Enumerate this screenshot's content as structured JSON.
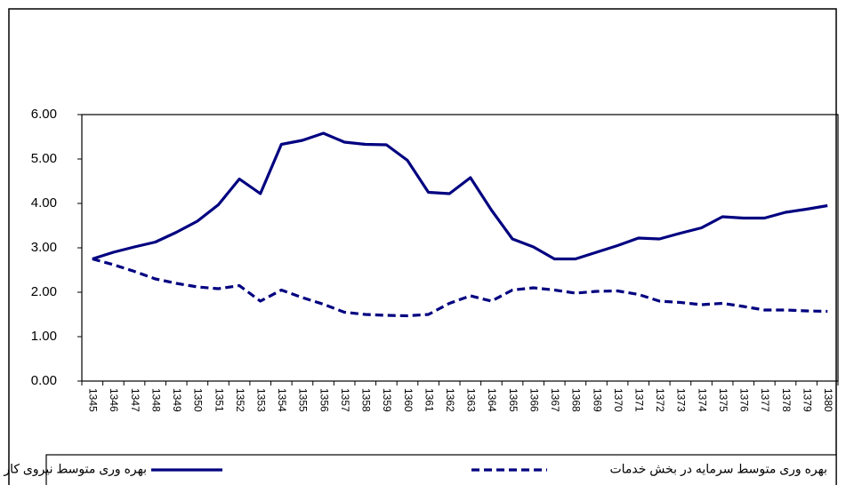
{
  "chart_data": {
    "type": "line",
    "categories": [
      "1345",
      "1346",
      "1347",
      "1348",
      "1349",
      "1350",
      "1351",
      "1352",
      "1353",
      "1354",
      "1355",
      "1356",
      "1357",
      "1358",
      "1359",
      "1360",
      "1361",
      "1362",
      "1363",
      "1364",
      "1365",
      "1366",
      "1367",
      "1368",
      "1369",
      "1370",
      "1371",
      "1372",
      "1373",
      "1374",
      "1375",
      "1376",
      "1377",
      "1378",
      "1379",
      "1380"
    ],
    "series": [
      {
        "name": "بهره وری متوسط نیروی کار در بخش خدمات",
        "color": "#000080",
        "dash": false,
        "values": [
          2.75,
          2.9,
          3.02,
          3.13,
          3.35,
          3.6,
          3.97,
          4.55,
          4.22,
          5.33,
          5.42,
          5.58,
          5.38,
          5.33,
          5.32,
          4.97,
          4.25,
          4.22,
          4.58,
          3.85,
          3.2,
          3.02,
          2.75,
          2.75,
          2.9,
          3.05,
          3.22,
          3.2,
          3.33,
          3.45,
          3.7,
          3.67,
          3.67,
          3.8,
          3.87,
          3.95
        ]
      },
      {
        "name": "بهره وری متوسط سرمایه در بخش خدمات",
        "color": "#000080",
        "dash": true,
        "values": [
          2.75,
          2.62,
          2.47,
          2.3,
          2.2,
          2.12,
          2.08,
          2.15,
          1.8,
          2.05,
          1.88,
          1.73,
          1.55,
          1.5,
          1.48,
          1.47,
          1.5,
          1.75,
          1.92,
          1.8,
          2.05,
          2.1,
          2.05,
          1.98,
          2.02,
          2.03,
          1.95,
          1.8,
          1.77,
          1.72,
          1.75,
          1.68,
          1.6,
          1.6,
          1.58,
          1.57
        ]
      }
    ],
    "ylim": [
      0,
      6
    ],
    "yticks": [
      {
        "value": 0,
        "label": "0.00"
      },
      {
        "value": 1,
        "label": "1.00"
      },
      {
        "value": 2,
        "label": "2.00"
      },
      {
        "value": 3,
        "label": "3.00"
      },
      {
        "value": 4,
        "label": "4.00"
      },
      {
        "value": 5,
        "label": "5.00"
      },
      {
        "value": 6,
        "label": "6.00"
      }
    ],
    "grid": false
  }
}
